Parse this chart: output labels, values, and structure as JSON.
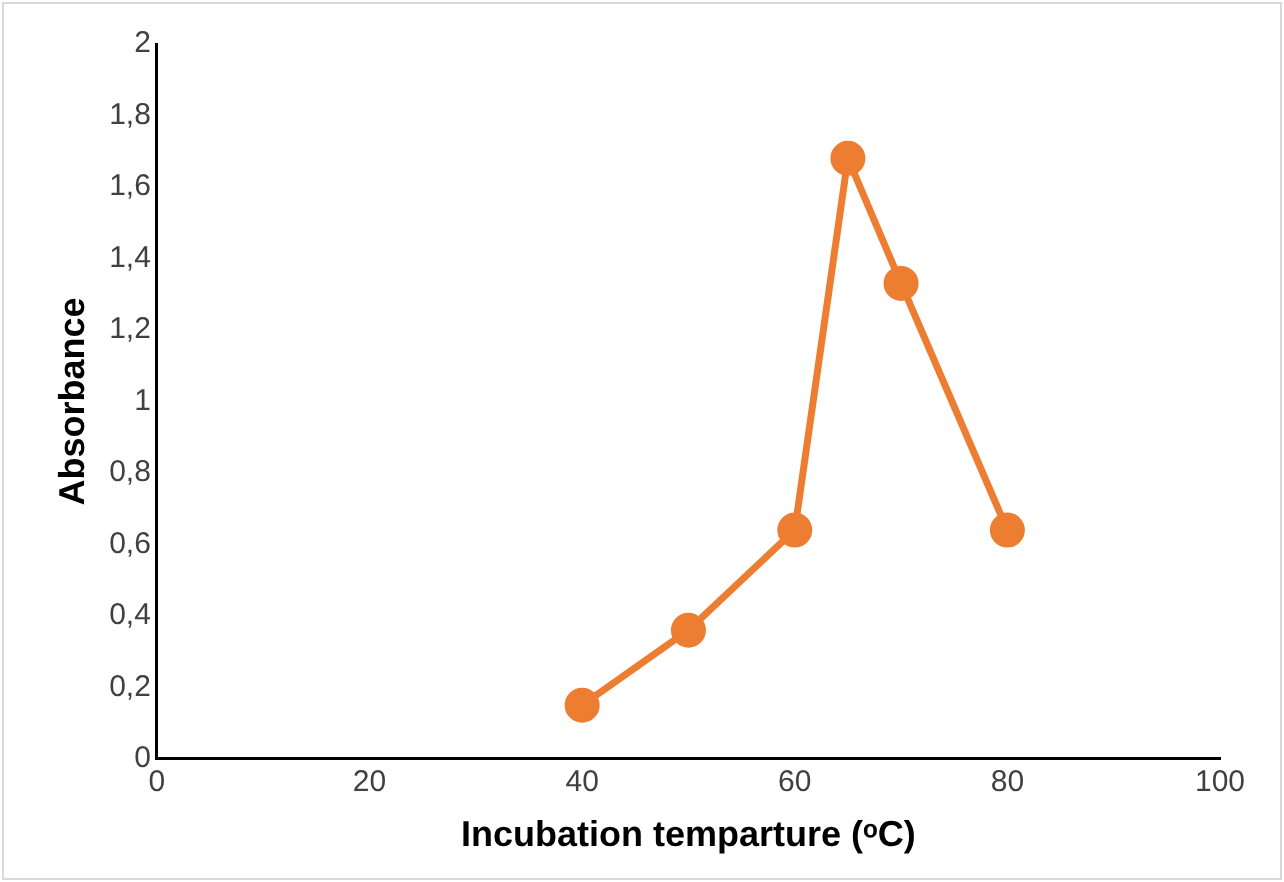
{
  "chart_data": {
    "type": "line",
    "xlabel": "Incubation temparture (ᵒC)",
    "ylabel": "Absorbance",
    "x": [
      40,
      50,
      60,
      65,
      70,
      80
    ],
    "series": [
      {
        "color": "#ed7d31",
        "values": [
          0.15,
          0.36,
          0.64,
          1.68,
          1.33,
          0.64
        ]
      }
    ],
    "xlim": [
      0,
      100
    ],
    "xticks": [
      0,
      20,
      40,
      60,
      80,
      100
    ],
    "ylim": [
      0,
      2
    ],
    "yticks": [
      0,
      {
        "value": 0.2,
        "label": "0,2"
      },
      {
        "value": 0.4,
        "label": "0,4"
      },
      {
        "value": 0.6,
        "label": "0,6"
      },
      {
        "value": 0.8,
        "label": "0,8"
      },
      1,
      {
        "value": 1.2,
        "label": "1,2"
      },
      {
        "value": 1.4,
        "label": "1,4"
      },
      {
        "value": 1.6,
        "label": "1,6"
      },
      {
        "value": 1.8,
        "label": "1,8"
      },
      2
    ],
    "grid": false,
    "legend": false,
    "marker": "circle",
    "line_style": "solid"
  }
}
